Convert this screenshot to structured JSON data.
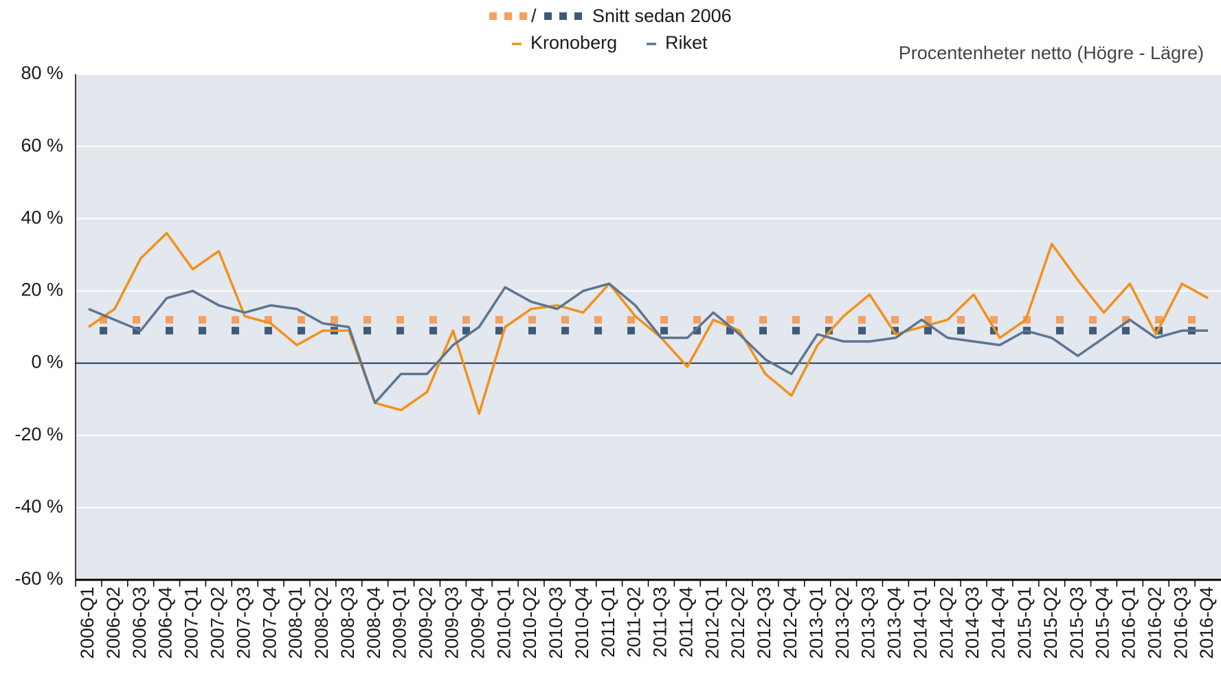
{
  "chart_data": {
    "type": "line",
    "annotation": "Procentenheter netto (Högre - Lägre)",
    "average_label": "Snitt sedan 2006",
    "categories": [
      "2006-Q1",
      "2006-Q2",
      "2006-Q3",
      "2006-Q4",
      "2007-Q1",
      "2007-Q2",
      "2007-Q3",
      "2007-Q4",
      "2008-Q1",
      "2008-Q2",
      "2008-Q3",
      "2008-Q4",
      "2009-Q1",
      "2009-Q2",
      "2009-Q3",
      "2009-Q4",
      "2010-Q1",
      "2010-Q2",
      "2010-Q3",
      "2010-Q4",
      "2011-Q1",
      "2011-Q2",
      "2011-Q3",
      "2011-Q4",
      "2012-Q1",
      "2012-Q2",
      "2012-Q3",
      "2012-Q4",
      "2013-Q1",
      "2013-Q2",
      "2013-Q3",
      "2013-Q4",
      "2014-Q1",
      "2014-Q2",
      "2014-Q3",
      "2014-Q4",
      "2015-Q1",
      "2015-Q2",
      "2015-Q3",
      "2015-Q4",
      "2016-Q1",
      "2016-Q2",
      "2016-Q3",
      "2016-Q4"
    ],
    "series": [
      {
        "name": "Kronoberg",
        "color": "#f39019",
        "average": 12,
        "average_color": "#f5a05c",
        "values": [
          10,
          15,
          29,
          36,
          26,
          31,
          13,
          11,
          5,
          9,
          9,
          -11,
          -13,
          -8,
          9,
          -14,
          10,
          15,
          16,
          14,
          22,
          13,
          7,
          -1,
          12,
          9,
          -3,
          -9,
          5,
          13,
          19,
          8,
          10,
          12,
          19,
          7,
          12,
          33,
          23,
          14,
          22,
          8,
          22,
          18
        ]
      },
      {
        "name": "Riket",
        "color": "#5b7590",
        "average": 9,
        "average_color": "#3f5a78",
        "values": [
          15,
          12,
          9,
          18,
          20,
          16,
          14,
          16,
          15,
          11,
          10,
          -11,
          -3,
          -3,
          5,
          10,
          21,
          17,
          15,
          20,
          22,
          16,
          7,
          7,
          14,
          8,
          1,
          -3,
          8,
          6,
          6,
          7,
          12,
          7,
          6,
          5,
          9,
          7,
          2,
          7,
          12,
          7,
          9,
          9
        ]
      }
    ],
    "ylim": [
      -60,
      80
    ],
    "yticks": [
      {
        "value": -60,
        "label": "-60 %"
      },
      {
        "value": -40,
        "label": "-40 %"
      },
      {
        "value": -20,
        "label": "-20 %"
      },
      {
        "value": 0,
        "label": "0 %"
      },
      {
        "value": 20,
        "label": "20 %"
      },
      {
        "value": 40,
        "label": "40 %"
      },
      {
        "value": 60,
        "label": "60 %"
      },
      {
        "value": 80,
        "label": "80 %"
      }
    ],
    "grid": true
  }
}
